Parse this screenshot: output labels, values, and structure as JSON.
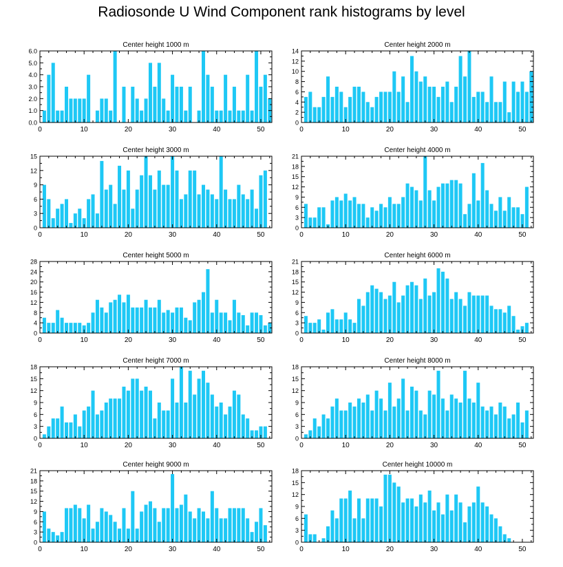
{
  "title": "Radiosonde U Wind Component rank histograms by level",
  "bar_color": "#1EC8F5",
  "chart_data": [
    {
      "type": "bar",
      "title": "Center height 1000 m",
      "ylim": [
        0,
        6
      ],
      "yticks": [
        "0.0",
        "1.0",
        "2.0",
        "3.0",
        "4.0",
        "5.0",
        "6.0"
      ],
      "xticks": [
        0,
        10,
        20,
        30,
        40,
        50
      ],
      "x_start": 1,
      "values": [
        1,
        4,
        5,
        1,
        1,
        3,
        2,
        2,
        2,
        2,
        4,
        0,
        1,
        2,
        2,
        1,
        6,
        0,
        3,
        0,
        3,
        2,
        1,
        2,
        5,
        3,
        5,
        2,
        1,
        4,
        3,
        3,
        1,
        3,
        0,
        1,
        6,
        4,
        3,
        1,
        1,
        4,
        1,
        3,
        1,
        1,
        4,
        1,
        6,
        3,
        4,
        2
      ]
    },
    {
      "type": "bar",
      "title": "Center height 2000 m",
      "ylim": [
        0,
        14
      ],
      "yticks": [
        "0",
        "2",
        "4",
        "6",
        "8",
        "10",
        "12",
        "14"
      ],
      "xticks": [
        0,
        10,
        20,
        30,
        40,
        50
      ],
      "x_start": 1,
      "values": [
        5,
        6,
        3,
        3,
        5,
        9,
        5,
        7,
        6,
        3,
        5,
        7,
        7,
        6,
        4,
        3,
        5,
        6,
        6,
        6,
        10,
        6,
        9,
        4,
        13,
        10,
        8,
        9,
        7,
        7,
        5,
        7,
        8,
        4,
        7,
        13,
        9,
        14,
        5,
        6,
        6,
        4,
        9,
        4,
        4,
        8,
        2,
        8,
        6,
        8,
        6,
        10
      ]
    },
    {
      "type": "bar",
      "title": "Center height 3000 m",
      "ylim": [
        0,
        15
      ],
      "yticks": [
        "0",
        "3",
        "6",
        "9",
        "12",
        "15"
      ],
      "xticks": [
        0,
        10,
        20,
        30,
        40,
        50
      ],
      "x_start": 1,
      "values": [
        9,
        6,
        2,
        4,
        5,
        6,
        1,
        3,
        4,
        2,
        6,
        7,
        3,
        14,
        8,
        9,
        5,
        13,
        8,
        12,
        4,
        8,
        11,
        15,
        11,
        8,
        12,
        9,
        9,
        15,
        12,
        6,
        7,
        12,
        12,
        7,
        9,
        8,
        7,
        6,
        15,
        8,
        6,
        6,
        9,
        7,
        6,
        8,
        4,
        11,
        12,
        0
      ]
    },
    {
      "type": "bar",
      "title": "Center height 4000 m",
      "ylim": [
        0,
        21
      ],
      "yticks": [
        "0",
        "3",
        "6",
        "9",
        "12",
        "15",
        "18",
        "21"
      ],
      "xticks": [
        0,
        10,
        20,
        30,
        40,
        50
      ],
      "x_start": 1,
      "values": [
        7,
        3,
        3,
        6,
        6,
        1,
        8,
        9,
        8,
        10,
        8,
        9,
        7,
        7,
        3,
        6,
        5,
        7,
        6,
        9,
        7,
        7,
        9,
        13,
        12,
        11,
        8,
        21,
        11,
        8,
        12,
        13,
        13,
        14,
        14,
        13,
        4,
        7,
        16,
        8,
        19,
        11,
        7,
        5,
        9,
        5,
        9,
        6,
        6,
        4,
        12,
        0
      ]
    },
    {
      "type": "bar",
      "title": "Center height 5000 m",
      "ylim": [
        0,
        28
      ],
      "yticks": [
        "0",
        "4",
        "8",
        "12",
        "16",
        "20",
        "24",
        "28"
      ],
      "xticks": [
        0,
        10,
        20,
        30,
        40,
        50
      ],
      "x_start": 1,
      "values": [
        6,
        4,
        4,
        9,
        6,
        4,
        4,
        4,
        4,
        3,
        4,
        8,
        13,
        10,
        8,
        12,
        13,
        15,
        12,
        15,
        10,
        10,
        10,
        13,
        10,
        10,
        13,
        8,
        9,
        8,
        10,
        10,
        6,
        5,
        12,
        13,
        16,
        25,
        8,
        13,
        8,
        8,
        5,
        13,
        8,
        7,
        3,
        8,
        8,
        7,
        3,
        4
      ]
    },
    {
      "type": "bar",
      "title": "Center height 6000 m",
      "ylim": [
        0,
        21
      ],
      "yticks": [
        "0",
        "3",
        "6",
        "9",
        "12",
        "15",
        "18",
        "21"
      ],
      "xticks": [
        0,
        10,
        20,
        30,
        40,
        50
      ],
      "x_start": 1,
      "values": [
        5,
        3,
        3,
        4,
        1,
        6,
        7,
        4,
        4,
        6,
        4,
        3,
        10,
        8,
        12,
        14,
        13,
        12,
        10,
        11,
        15,
        9,
        11,
        14,
        15,
        14,
        10,
        16,
        11,
        12,
        19,
        18,
        16,
        10,
        12,
        10,
        8,
        12,
        11,
        11,
        11,
        11,
        8,
        7,
        7,
        6,
        8,
        5,
        1,
        2,
        3,
        0
      ]
    },
    {
      "type": "bar",
      "title": "Center height 7000 m",
      "ylim": [
        0,
        18
      ],
      "yticks": [
        "0",
        "3",
        "6",
        "9",
        "12",
        "15",
        "18"
      ],
      "xticks": [
        0,
        10,
        20,
        30,
        40,
        50
      ],
      "x_start": 1,
      "values": [
        1,
        3,
        5,
        5,
        8,
        4,
        4,
        6,
        3,
        7,
        8,
        12,
        6,
        7,
        9,
        10,
        10,
        10,
        13,
        12,
        15,
        15,
        12,
        13,
        12,
        5,
        9,
        7,
        7,
        15,
        9,
        18,
        9,
        17,
        11,
        15,
        17,
        14,
        11,
        8,
        9,
        6,
        8,
        12,
        11,
        6,
        5,
        2,
        2,
        3,
        3,
        0
      ]
    },
    {
      "type": "bar",
      "title": "Center height 8000 m",
      "ylim": [
        0,
        18
      ],
      "yticks": [
        "0",
        "3",
        "6",
        "9",
        "12",
        "15",
        "18"
      ],
      "xticks": [
        0,
        10,
        20,
        30,
        40,
        50
      ],
      "x_start": 1,
      "values": [
        1,
        2,
        5,
        3,
        6,
        5,
        8,
        10,
        7,
        7,
        9,
        8,
        10,
        9,
        11,
        7,
        12,
        10,
        7,
        14,
        8,
        10,
        15,
        7,
        13,
        12,
        7,
        6,
        12,
        11,
        17,
        10,
        7,
        11,
        10,
        9,
        17,
        10,
        9,
        14,
        8,
        7,
        8,
        6,
        9,
        8,
        5,
        6,
        9,
        4,
        7,
        0
      ]
    },
    {
      "type": "bar",
      "title": "Center height 9000 m",
      "ylim": [
        0,
        21
      ],
      "yticks": [
        "0",
        "3",
        "6",
        "9",
        "12",
        "15",
        "18",
        "21"
      ],
      "xticks": [
        0,
        10,
        20,
        30,
        40,
        50
      ],
      "x_start": 1,
      "values": [
        9,
        4,
        3,
        2,
        3,
        10,
        10,
        11,
        10,
        7,
        11,
        4,
        6,
        10,
        9,
        8,
        6,
        4,
        10,
        4,
        15,
        4,
        9,
        11,
        12,
        10,
        6,
        10,
        10,
        20,
        10,
        11,
        14,
        9,
        7,
        10,
        9,
        7,
        15,
        10,
        7,
        7,
        10,
        10,
        10,
        10,
        7,
        3,
        6,
        10,
        5,
        0
      ]
    },
    {
      "type": "bar",
      "title": "Center height 10000 m",
      "ylim": [
        0,
        18
      ],
      "yticks": [
        "0",
        "3",
        "6",
        "9",
        "12",
        "15",
        "18"
      ],
      "xticks": [
        0,
        10,
        20,
        30,
        40,
        50
      ],
      "x_start": 1,
      "values": [
        7,
        2,
        2,
        0,
        1,
        4,
        8,
        6,
        11,
        11,
        13,
        6,
        11,
        6,
        11,
        11,
        11,
        9,
        17,
        17,
        15,
        14,
        10,
        11,
        11,
        9,
        12,
        10,
        13,
        8,
        10,
        7,
        12,
        8,
        12,
        10,
        5,
        9,
        10,
        14,
        10,
        9,
        7,
        6,
        4,
        2,
        1,
        0,
        0,
        0,
        0,
        0
      ]
    }
  ]
}
